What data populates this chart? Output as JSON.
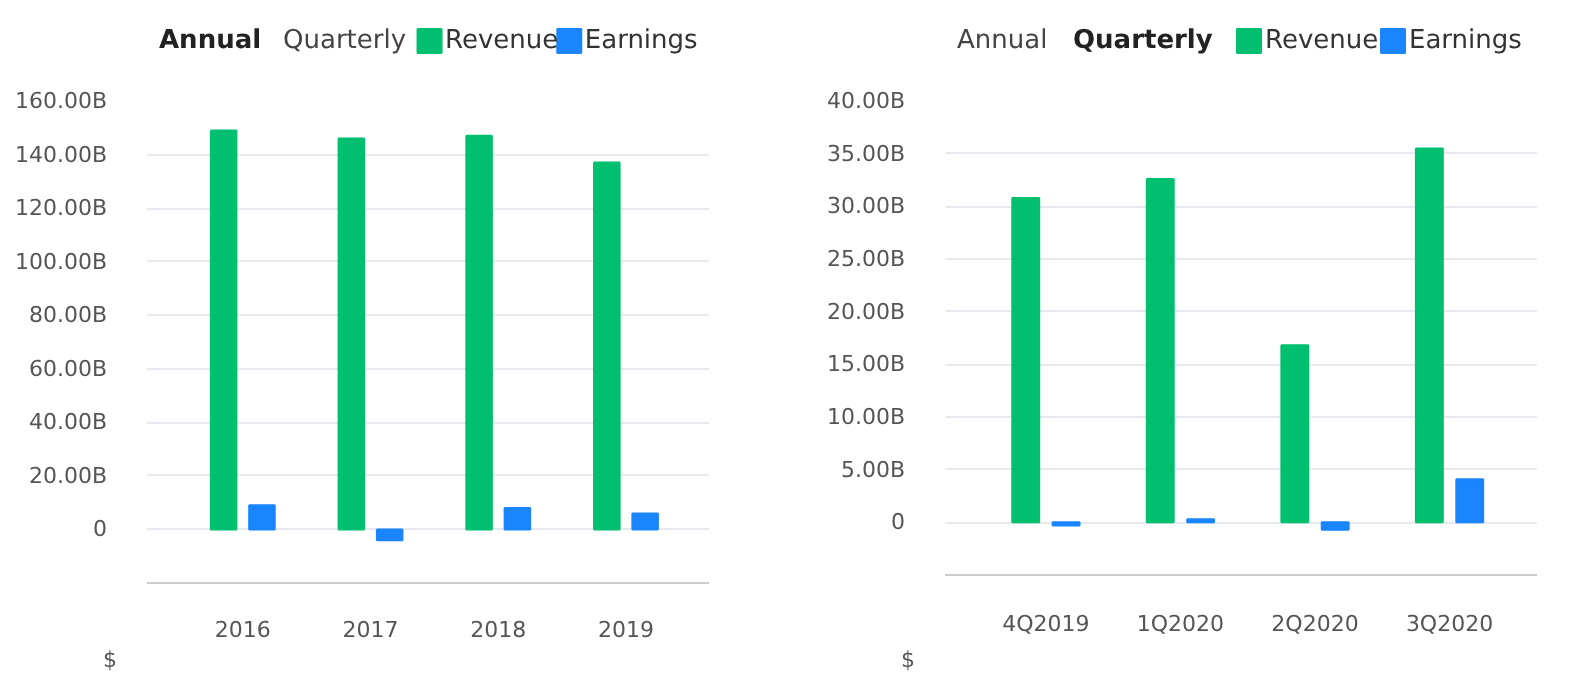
{
  "chart_data": [
    {
      "type": "bar",
      "title": "Annual",
      "annotations": [
        "Quarterly",
        "$"
      ],
      "categories": [
        "2016",
        "2017",
        "2018",
        "2019"
      ],
      "series": [
        {
          "name": "Revenue",
          "color": "#00bf6f",
          "values": [
            149,
            146,
            147,
            137
          ]
        },
        {
          "name": "Earnings",
          "color": "#1a85ff",
          "values": [
            9,
            -4,
            8,
            6
          ]
        }
      ],
      "ylim": [
        -20,
        160
      ],
      "yticks": [
        {
          "value": 0,
          "label": "0"
        },
        {
          "value": 20,
          "label": "20.00B"
        },
        {
          "value": 40,
          "label": "40.00B"
        },
        {
          "value": 60,
          "label": "60.00B"
        },
        {
          "value": 80,
          "label": "80.00B"
        },
        {
          "value": 100,
          "label": "100.00B"
        },
        {
          "value": 120,
          "label": "120.00B"
        },
        {
          "value": 140,
          "label": "140.00B"
        },
        {
          "value": 160,
          "label": "160.00B"
        }
      ],
      "grid": "y",
      "legend": "top right"
    },
    {
      "type": "bar",
      "title": "Quarterly",
      "annotations": [
        "Annual",
        "$"
      ],
      "categories": [
        "4Q2019",
        "1Q2020",
        "2Q2020",
        "3Q2020"
      ],
      "series": [
        {
          "name": "Revenue",
          "color": "#00bf6f",
          "values": [
            30.8,
            32.6,
            16.8,
            35.5
          ]
        },
        {
          "name": "Earnings",
          "color": "#1a85ff",
          "values": [
            -0.3,
            0.3,
            -0.7,
            4.1
          ]
        }
      ],
      "ylim": [
        -5,
        40
      ],
      "yticks": [
        {
          "value": 0,
          "label": "0"
        },
        {
          "value": 5,
          "label": "5.00B"
        },
        {
          "value": 10,
          "label": "10.00B"
        },
        {
          "value": 15,
          "label": "15.00B"
        },
        {
          "value": 20,
          "label": "20.00B"
        },
        {
          "value": 25,
          "label": "25.00B"
        },
        {
          "value": 30,
          "label": "30.00B"
        },
        {
          "value": 35,
          "label": "35.00B"
        },
        {
          "value": 40,
          "label": "40.00B"
        }
      ],
      "grid": "y",
      "legend": "top right"
    }
  ]
}
